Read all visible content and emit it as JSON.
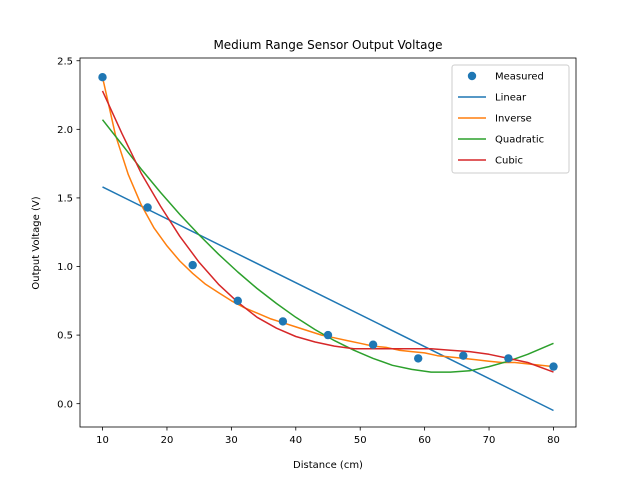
{
  "chart_data": {
    "type": "scatter",
    "title": "Medium Range Sensor Output Voltage",
    "xlabel": "Distance (cm)",
    "ylabel": "Output Voltage (V)",
    "xlim": [
      6.5,
      83.5
    ],
    "ylim": [
      -0.17,
      2.52
    ],
    "xticks": [
      10,
      20,
      30,
      40,
      50,
      60,
      70,
      80
    ],
    "yticks": [
      0.0,
      0.5,
      1.0,
      1.5,
      2.0,
      2.5
    ],
    "grid": false,
    "legend_position": "top-right",
    "measured": {
      "name": "Measured",
      "color": "#1f77b4",
      "x": [
        10,
        17,
        24,
        31,
        38,
        45,
        52,
        59,
        66,
        73,
        80
      ],
      "y": [
        2.38,
        1.43,
        1.01,
        0.75,
        0.6,
        0.5,
        0.43,
        0.33,
        0.35,
        0.33,
        0.27
      ]
    },
    "fits": [
      {
        "name": "Linear",
        "color": "#1f77b4",
        "x": [
          10,
          80
        ],
        "y": [
          1.58,
          -0.05
        ]
      },
      {
        "name": "Inverse",
        "color": "#ff7f0e",
        "x": [
          10,
          12,
          14,
          16,
          18,
          20,
          22,
          24,
          26,
          28,
          30,
          32,
          34,
          36,
          38,
          40,
          42,
          44,
          46,
          48,
          50,
          52,
          54,
          56,
          58,
          60,
          62,
          64,
          66,
          68,
          70,
          72,
          74,
          76,
          78,
          80
        ],
        "y": [
          2.38,
          1.96,
          1.67,
          1.45,
          1.28,
          1.15,
          1.04,
          0.95,
          0.87,
          0.81,
          0.75,
          0.7,
          0.66,
          0.62,
          0.59,
          0.56,
          0.53,
          0.5,
          0.48,
          0.46,
          0.44,
          0.42,
          0.41,
          0.39,
          0.38,
          0.37,
          0.35,
          0.34,
          0.33,
          0.32,
          0.31,
          0.3,
          0.3,
          0.29,
          0.28,
          0.27
        ]
      },
      {
        "name": "Quadratic",
        "color": "#2ca02c",
        "x": [
          10,
          13,
          16,
          19,
          22,
          25,
          28,
          31,
          34,
          37,
          40,
          43,
          46,
          49,
          52,
          55,
          58,
          61,
          64,
          67,
          70,
          73,
          76,
          80
        ],
        "y": [
          2.07,
          1.89,
          1.71,
          1.54,
          1.38,
          1.23,
          1.09,
          0.96,
          0.84,
          0.73,
          0.63,
          0.54,
          0.46,
          0.39,
          0.33,
          0.28,
          0.25,
          0.23,
          0.23,
          0.24,
          0.27,
          0.31,
          0.36,
          0.44
        ]
      },
      {
        "name": "Cubic",
        "color": "#d62728",
        "x": [
          10,
          13,
          16,
          19,
          22,
          25,
          28,
          31,
          34,
          37,
          40,
          43,
          46,
          49,
          52,
          55,
          58,
          61,
          64,
          67,
          70,
          73,
          76,
          80
        ],
        "y": [
          2.28,
          1.97,
          1.68,
          1.44,
          1.22,
          1.03,
          0.87,
          0.74,
          0.63,
          0.55,
          0.49,
          0.45,
          0.42,
          0.4,
          0.4,
          0.4,
          0.4,
          0.4,
          0.39,
          0.38,
          0.36,
          0.33,
          0.3,
          0.23
        ]
      }
    ]
  }
}
